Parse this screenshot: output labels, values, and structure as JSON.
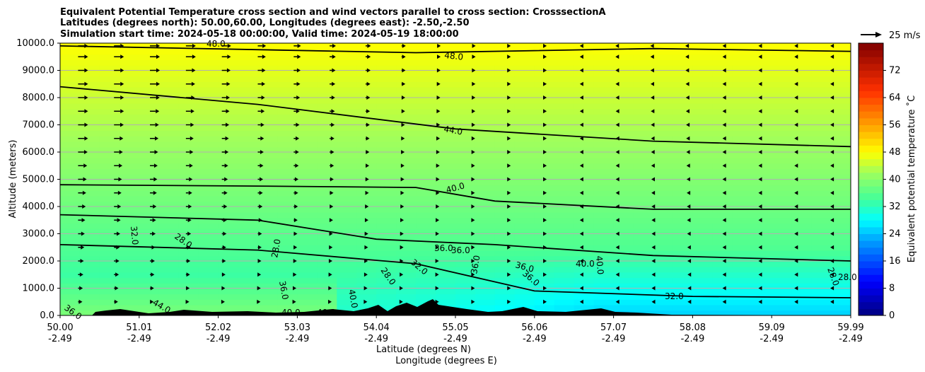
{
  "chart_data": {
    "type": "heatmap",
    "title_lines": [
      "Equivalent Potential Temperature cross section and wind vectors parallel to cross section: CrosssectionA",
      "Latitudes (degrees north): 50.00,60.00, Longitudes (degrees east): -2.50,-2.50",
      "Simulation start time: 2024-05-18 00:00:00, Valid time: 2024-05-19 18:00:00"
    ],
    "ylabel": "Altitude (meters)",
    "xlabel": "Latitude (degrees N)",
    "xlabel2": "Longitude (degrees E)",
    "ylim": [
      0,
      10000
    ],
    "y_ticks": [
      "0.0",
      "1000.0",
      "2000.0",
      "3000.0",
      "4000.0",
      "5000.0",
      "6000.0",
      "7000.0",
      "8000.0",
      "9000.0",
      "10000.0"
    ],
    "x_lat_ticks": [
      "50.00",
      "51.01",
      "52.02",
      "53.03",
      "54.04",
      "55.05",
      "56.06",
      "57.07",
      "58.08",
      "59.09",
      "59.99"
    ],
    "x_lon_ticks": [
      "-2.49",
      "-2.49",
      "-2.49",
      "-2.49",
      "-2.49",
      "-2.49",
      "-2.49",
      "-2.49",
      "-2.49",
      "-2.49",
      "-2.49"
    ],
    "colorbar": {
      "label": "Equivalent potential temperature ˚C",
      "range": [
        0,
        80
      ],
      "ticks": [
        "0",
        "8",
        "16",
        "24",
        "32",
        "40",
        "48",
        "56",
        "64",
        "72"
      ]
    },
    "quiver_key": "25 m/s",
    "contour_labels": [
      "48.0",
      "48.0",
      "44.0",
      "40.0",
      "36.0",
      "36.0",
      "32.0",
      "32.0",
      "28.0",
      "28.0",
      "28.0",
      "36.0",
      "36.0",
      "36.0",
      "40.0",
      "40.0",
      "40.0",
      "36.0",
      "44.0",
      "40.0",
      "40.0",
      "36.0",
      "32.0",
      "28.0",
      "28.0"
    ],
    "series": [
      {
        "name": "contour 48",
        "x": [
          0,
          0.45,
          0.75,
          1
        ],
        "y": [
          9900,
          9650,
          9800,
          9700
        ]
      },
      {
        "name": "contour 44",
        "x": [
          0,
          0.25,
          0.5,
          0.75,
          1
        ],
        "y": [
          8400,
          7750,
          6850,
          6400,
          6200
        ]
      },
      {
        "name": "contour 40",
        "x": [
          0,
          0.25,
          0.45,
          0.55,
          0.75,
          1
        ],
        "y": [
          4800,
          4750,
          4700,
          4200,
          3900,
          3900
        ]
      },
      {
        "name": "contour 36",
        "x": [
          0,
          0.25,
          0.4,
          0.55,
          0.75,
          1
        ],
        "y": [
          3700,
          3500,
          2800,
          2600,
          2200,
          2000
        ]
      },
      {
        "name": "contour 32",
        "x": [
          0,
          0.25,
          0.45,
          0.6,
          0.8,
          1
        ],
        "y": [
          2600,
          2400,
          1900,
          900,
          700,
          650
        ]
      }
    ],
    "wind_rows_m": [
      9900,
      9500,
      9000,
      8500,
      8000,
      7500,
      7000,
      6500,
      6000,
      5500,
      5000,
      4500,
      4000,
      3500,
      3000,
      2500,
      2000,
      1500,
      1000,
      500
    ],
    "color_stops": [
      {
        "v": 0,
        "c": "#00007f"
      },
      {
        "v": 10,
        "c": "#0000ff"
      },
      {
        "v": 22,
        "c": "#00a0ff"
      },
      {
        "v": 28,
        "c": "#00ffff"
      },
      {
        "v": 34,
        "c": "#40ff9c"
      },
      {
        "v": 42,
        "c": "#a0ff5c"
      },
      {
        "v": 48,
        "c": "#ffff00"
      },
      {
        "v": 56,
        "c": "#ffa000"
      },
      {
        "v": 66,
        "c": "#ff3000"
      },
      {
        "v": 80,
        "c": "#7f0000"
      }
    ]
  }
}
